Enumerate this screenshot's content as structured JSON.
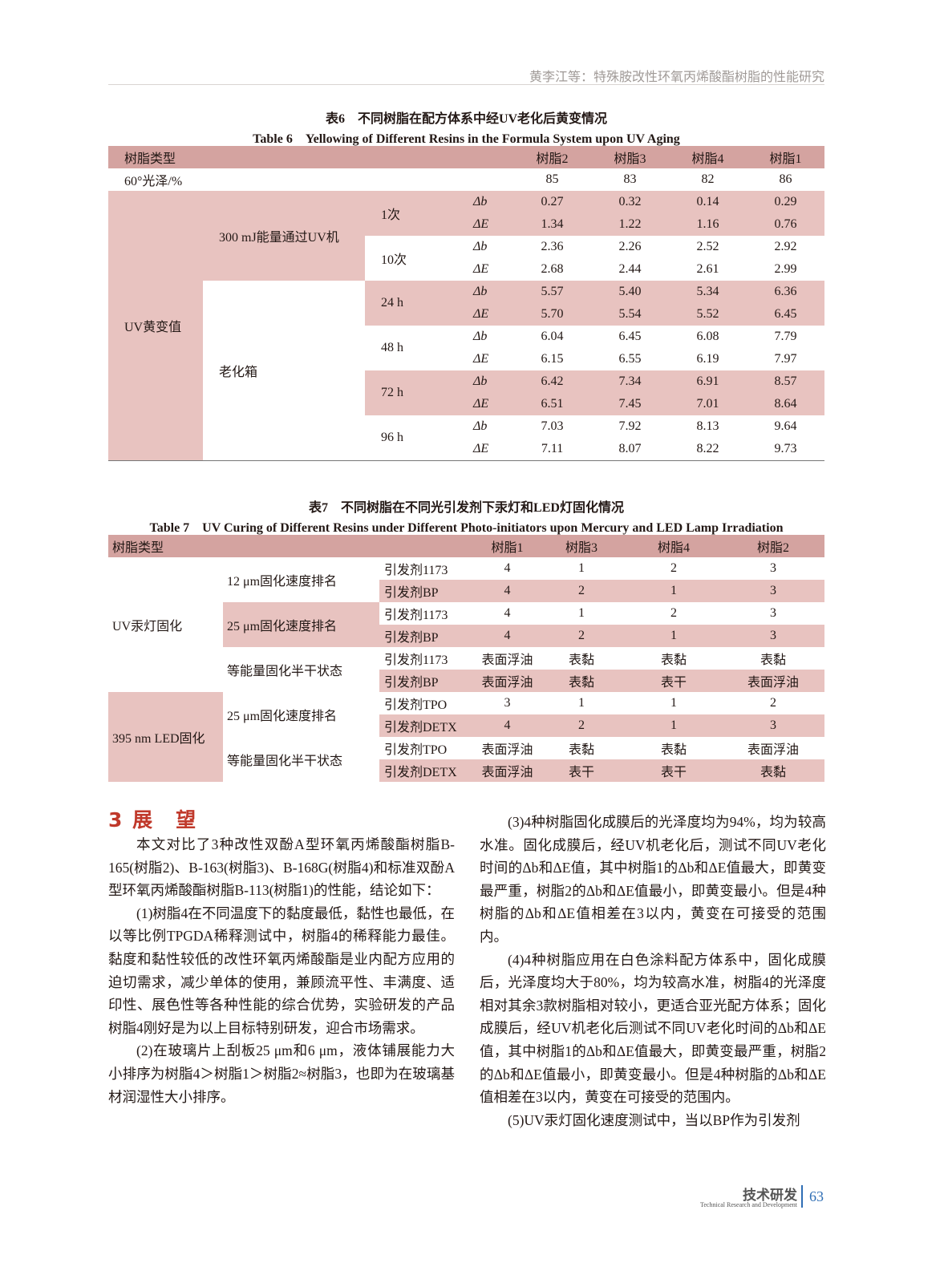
{
  "header": {
    "running_title": "黄李江等：特殊胺改性环氧丙烯酸酯树脂的性能研究"
  },
  "table6": {
    "caption_cn": "表6　不同树脂在配方体系中经UV老化后黄变情况",
    "caption_en": "Table 6　Yellowing of Different Resins in the Formula System upon UV Aging",
    "headers": [
      "树脂类型",
      "树脂2",
      "树脂3",
      "树脂4",
      "树脂1"
    ],
    "gloss": {
      "label": "60°光泽/%",
      "values": [
        "85",
        "83",
        "82",
        "86"
      ]
    },
    "section_label": "UV黄变值",
    "delta_labels": [
      "Δb",
      "ΔE"
    ],
    "groups": [
      {
        "label": "300 mJ能量通过UV机",
        "periods": [
          {
            "label": "1次",
            "db": [
              "0.27",
              "0.32",
              "0.14",
              "0.29"
            ],
            "dE": [
              "1.34",
              "1.22",
              "1.16",
              "0.76"
            ]
          },
          {
            "label": "10次",
            "db": [
              "2.36",
              "2.26",
              "2.52",
              "2.92"
            ],
            "dE": [
              "2.68",
              "2.44",
              "2.61",
              "2.99"
            ]
          }
        ]
      },
      {
        "label": "老化箱",
        "periods": [
          {
            "label": "24 h",
            "db": [
              "5.57",
              "5.40",
              "5.34",
              "6.36"
            ],
            "dE": [
              "5.70",
              "5.54",
              "5.52",
              "6.45"
            ]
          },
          {
            "label": "48 h",
            "db": [
              "6.04",
              "6.45",
              "6.08",
              "7.79"
            ],
            "dE": [
              "6.15",
              "6.55",
              "6.19",
              "7.97"
            ]
          },
          {
            "label": "72 h",
            "db": [
              "6.42",
              "7.34",
              "6.91",
              "8.57"
            ],
            "dE": [
              "6.51",
              "7.45",
              "7.01",
              "8.64"
            ]
          },
          {
            "label": "96 h",
            "db": [
              "7.03",
              "7.92",
              "8.13",
              "9.64"
            ],
            "dE": [
              "7.11",
              "8.07",
              "8.22",
              "9.73"
            ]
          }
        ]
      }
    ]
  },
  "table7": {
    "caption_cn": "表7　不同树脂在不同光引发剂下汞灯和LED灯固化情况",
    "caption_en": "Table 7　UV Curing of Different Resins under Different Photo-initiators upon Mercury and LED Lamp Irradiation",
    "headers": [
      "树脂类型",
      "树脂1",
      "树脂3",
      "树脂4",
      "树脂2"
    ],
    "groups": [
      {
        "label": "UV汞灯固化",
        "subs": [
          {
            "label": "12 μm固化速度排名",
            "rows": [
              [
                "引发剂1173",
                "4",
                "1",
                "2",
                "3"
              ],
              [
                "引发剂BP",
                "4",
                "2",
                "1",
                "3"
              ]
            ]
          },
          {
            "label": "25 μm固化速度排名",
            "rows": [
              [
                "引发剂1173",
                "4",
                "1",
                "2",
                "3"
              ],
              [
                "引发剂BP",
                "4",
                "2",
                "1",
                "3"
              ]
            ]
          },
          {
            "label": "等能量固化半干状态",
            "rows": [
              [
                "引发剂1173",
                "表面浮油",
                "表黏",
                "表黏",
                "表黏"
              ],
              [
                "引发剂BP",
                "表面浮油",
                "表黏",
                "表干",
                "表面浮油"
              ]
            ]
          }
        ]
      },
      {
        "label": "395 nm LED固化",
        "subs": [
          {
            "label": "25 μm固化速度排名",
            "rows": [
              [
                "引发剂TPO",
                "3",
                "1",
                "1",
                "2"
              ],
              [
                "引发剂DETX",
                "4",
                "2",
                "1",
                "3"
              ]
            ]
          },
          {
            "label": "等能量固化半干状态",
            "rows": [
              [
                "引发剂TPO",
                "表面浮油",
                "表黏",
                "表黏",
                "表面浮油"
              ],
              [
                "引发剂DETX",
                "表面浮油",
                "表干",
                "表干",
                "表黏"
              ]
            ]
          }
        ]
      }
    ]
  },
  "section": {
    "title": "3 展　望",
    "left_paragraphs": [
      "本文对比了3种改性双酚A型环氧丙烯酸酯树脂B-165(树脂2)、B-163(树脂3)、B-168G(树脂4)和标准双酚A型环氧丙烯酸酯树脂B-113(树脂1)的性能，结论如下：",
      "(1)树脂4在不同温度下的黏度最低，黏性也最低，在以等比例TPGDA稀释测试中，树脂4的稀释能力最佳。黏度和黏性较低的改性环氧丙烯酸酯是业内配方应用的迫切需求，减少单体的使用，兼顾流平性、丰满度、适印性、展色性等各种性能的综合优势，实验研发的产品树脂4刚好是为以上目标特别研发，迎合市场需求。",
      "(2)在玻璃片上刮板25 μm和6 μm，液体铺展能力大小排序为树脂4＞树脂1＞树脂2≈树脂3，也即为在玻璃基材润湿性大小排序。"
    ],
    "right_paragraphs": [
      "(3)4种树脂固化成膜后的光泽度均为94%，均为较高水准。固化成膜后，经UV机老化后，测试不同UV老化时间的Δb和ΔE值，其中树脂1的Δb和ΔE值最大，即黄变最严重，树脂2的Δb和ΔE值最小，即黄变最小。但是4种树脂的Δb和ΔE值相差在3以内，黄变在可接受的范围内。",
      "(4)4种树脂应用在白色涂料配方体系中，固化成膜后，光泽度均大于80%，均为较高水准，树脂4的光泽度相对其余3款树脂相对较小，更适合亚光配方体系；固化成膜后，经UV机老化后测试不同UV老化时间的Δb和ΔE值，其中树脂1的Δb和ΔE值最大，即黄变最严重，树脂2的Δb和ΔE值最小，即黄变最小。但是4种树脂的Δb和ΔE值相差在3以内，黄变在可接受的范围内。",
      "(5)UV汞灯固化速度测试中，当以BP作为引发剂"
    ]
  },
  "footer": {
    "column_cn": "技术研发",
    "column_en": "Technical Research and Development",
    "page_number": "63"
  },
  "colors": {
    "header_row": "#d4a3a0",
    "shaded_row": "#e8c3c0",
    "section_title": "#c0392b",
    "page_number": "#2f6eb5"
  }
}
